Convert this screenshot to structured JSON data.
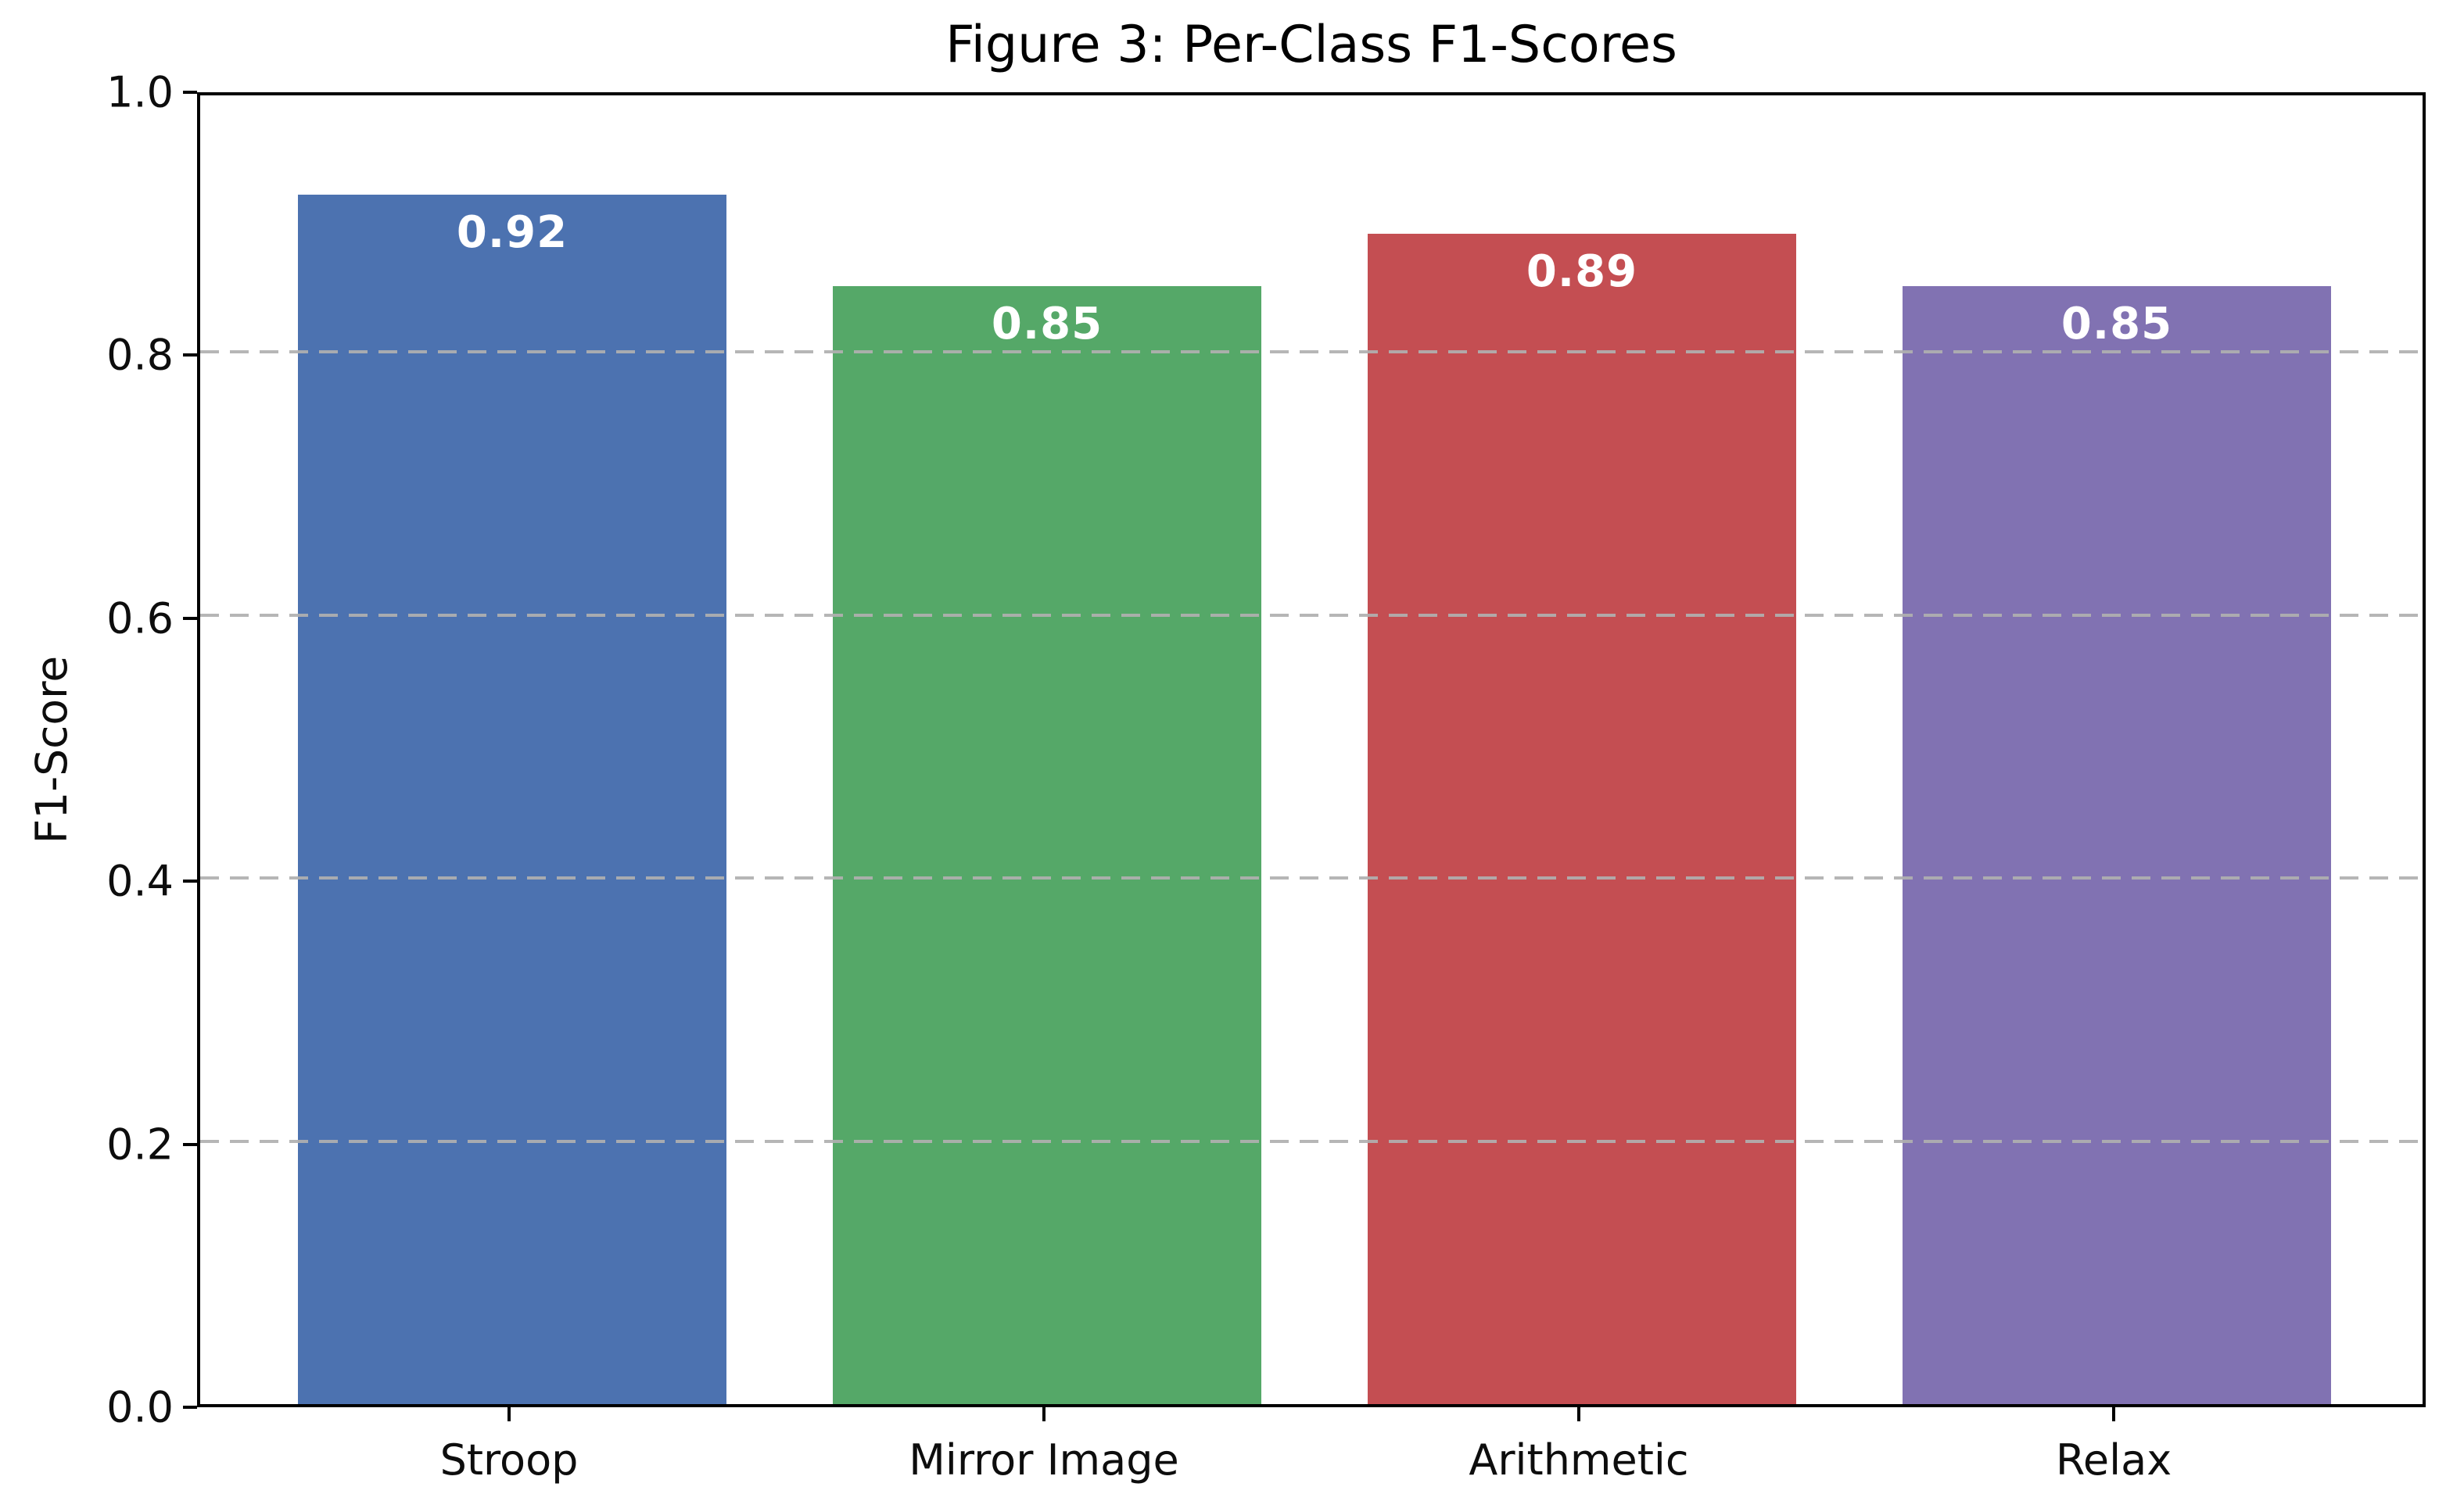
{
  "figure": {
    "title": "Figure 3: Per-Class F1-Scores"
  },
  "chart_data": {
    "type": "bar",
    "title": "Figure 3: Per-Class F1-Scores",
    "categories": [
      "Stroop",
      "Mirror Image",
      "Arithmetic",
      "Relax"
    ],
    "values": [
      0.92,
      0.85,
      0.89,
      0.85
    ],
    "value_labels": [
      "0.92",
      "0.85",
      "0.89",
      "0.85"
    ],
    "bar_colors": [
      "#4C72B0",
      "#55A868",
      "#C44E52",
      "#8172B2"
    ],
    "value_label_color": "#ffffff",
    "xlabel": "",
    "ylabel": "F1-Score",
    "ylim": [
      0.0,
      1.0
    ],
    "yticks": [
      0.0,
      0.2,
      0.4,
      0.6,
      0.8,
      1.0
    ],
    "ytick_labels": [
      "0.0",
      "0.2",
      "0.4",
      "0.6",
      "0.8",
      "1.0"
    ],
    "grid": "horizontal-dashed",
    "grid_color": "#b0b0b0",
    "grid_on": true,
    "legend_position": "none",
    "bar_width_fraction": 0.8,
    "spine_color": "#000000",
    "background_color": "#ffffff"
  }
}
